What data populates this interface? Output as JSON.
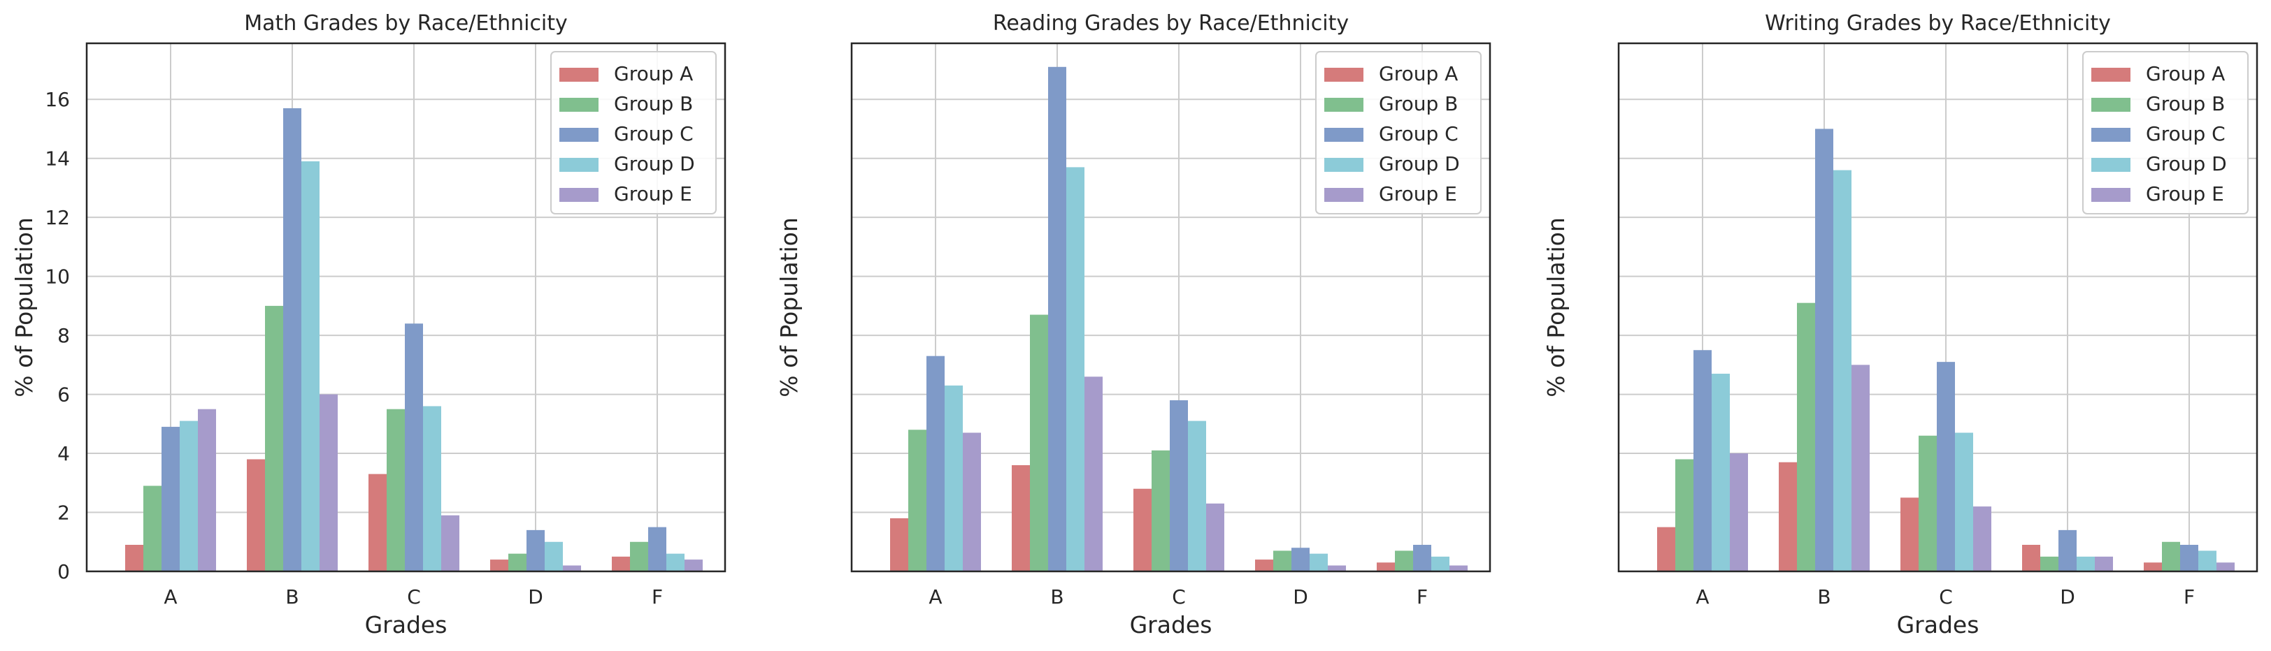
{
  "figure": {
    "charts": [
      {
        "title": "Math Grades by Race/Ethnicity",
        "xlabel": "Grades",
        "ylabel": "% of Population",
        "show_ytick_labels": true
      },
      {
        "title": "Reading Grades by Race/Ethnicity",
        "xlabel": "Grades",
        "ylabel": "% of Population",
        "show_ytick_labels": false
      },
      {
        "title": "Writing Grades by Race/Ethnicity",
        "xlabel": "Grades",
        "ylabel": "% of Population",
        "show_ytick_labels": false
      }
    ]
  },
  "chart_data": [
    {
      "type": "bar",
      "title": "Math Grades by Race/Ethnicity",
      "xlabel": "Grades",
      "ylabel": "% of Population",
      "categories": [
        "A",
        "B",
        "C",
        "D",
        "F"
      ],
      "ylim": [
        0,
        17.9
      ],
      "yticks": [
        0,
        2,
        4,
        6,
        8,
        10,
        12,
        14,
        16
      ],
      "grid": true,
      "legend": "top-right",
      "series": [
        {
          "name": "Group A",
          "color": "#d57b7b",
          "values": [
            0.9,
            3.8,
            3.3,
            0.4,
            0.5
          ]
        },
        {
          "name": "Group B",
          "color": "#80bf8e",
          "values": [
            2.9,
            9.0,
            5.5,
            0.6,
            1.0
          ]
        },
        {
          "name": "Group C",
          "color": "#7f9ac8",
          "values": [
            4.9,
            15.7,
            8.4,
            1.4,
            1.5
          ]
        },
        {
          "name": "Group D",
          "color": "#8ccbd8",
          "values": [
            5.1,
            13.9,
            5.6,
            1.0,
            0.6
          ]
        },
        {
          "name": "Group E",
          "color": "#a69bcb",
          "values": [
            5.5,
            6.0,
            1.9,
            0.2,
            0.4
          ]
        }
      ]
    },
    {
      "type": "bar",
      "title": "Reading Grades by Race/Ethnicity",
      "xlabel": "Grades",
      "ylabel": "% of Population",
      "categories": [
        "A",
        "B",
        "C",
        "D",
        "F"
      ],
      "ylim": [
        0,
        17.9
      ],
      "yticks": [
        0,
        2,
        4,
        6,
        8,
        10,
        12,
        14,
        16
      ],
      "grid": true,
      "legend": "top-right",
      "series": [
        {
          "name": "Group A",
          "color": "#d57b7b",
          "values": [
            1.8,
            3.6,
            2.8,
            0.4,
            0.3
          ]
        },
        {
          "name": "Group B",
          "color": "#80bf8e",
          "values": [
            4.8,
            8.7,
            4.1,
            0.7,
            0.7
          ]
        },
        {
          "name": "Group C",
          "color": "#7f9ac8",
          "values": [
            7.3,
            17.1,
            5.8,
            0.8,
            0.9
          ]
        },
        {
          "name": "Group D",
          "color": "#8ccbd8",
          "values": [
            6.3,
            13.7,
            5.1,
            0.6,
            0.5
          ]
        },
        {
          "name": "Group E",
          "color": "#a69bcb",
          "values": [
            4.7,
            6.6,
            2.3,
            0.2,
            0.2
          ]
        }
      ]
    },
    {
      "type": "bar",
      "title": "Writing Grades by Race/Ethnicity",
      "xlabel": "Grades",
      "ylabel": "% of Population",
      "categories": [
        "A",
        "B",
        "C",
        "D",
        "F"
      ],
      "ylim": [
        0,
        17.9
      ],
      "yticks": [
        0,
        2,
        4,
        6,
        8,
        10,
        12,
        14,
        16
      ],
      "grid": true,
      "legend": "top-right",
      "series": [
        {
          "name": "Group A",
          "color": "#d57b7b",
          "values": [
            1.5,
            3.7,
            2.5,
            0.9,
            0.3
          ]
        },
        {
          "name": "Group B",
          "color": "#80bf8e",
          "values": [
            3.8,
            9.1,
            4.6,
            0.5,
            1.0
          ]
        },
        {
          "name": "Group C",
          "color": "#7f9ac8",
          "values": [
            7.5,
            15.0,
            7.1,
            1.4,
            0.9
          ]
        },
        {
          "name": "Group D",
          "color": "#8ccbd8",
          "values": [
            6.7,
            13.6,
            4.7,
            0.5,
            0.7
          ]
        },
        {
          "name": "Group E",
          "color": "#a69bcb",
          "values": [
            4.0,
            7.0,
            2.2,
            0.5,
            0.3
          ]
        }
      ]
    }
  ]
}
